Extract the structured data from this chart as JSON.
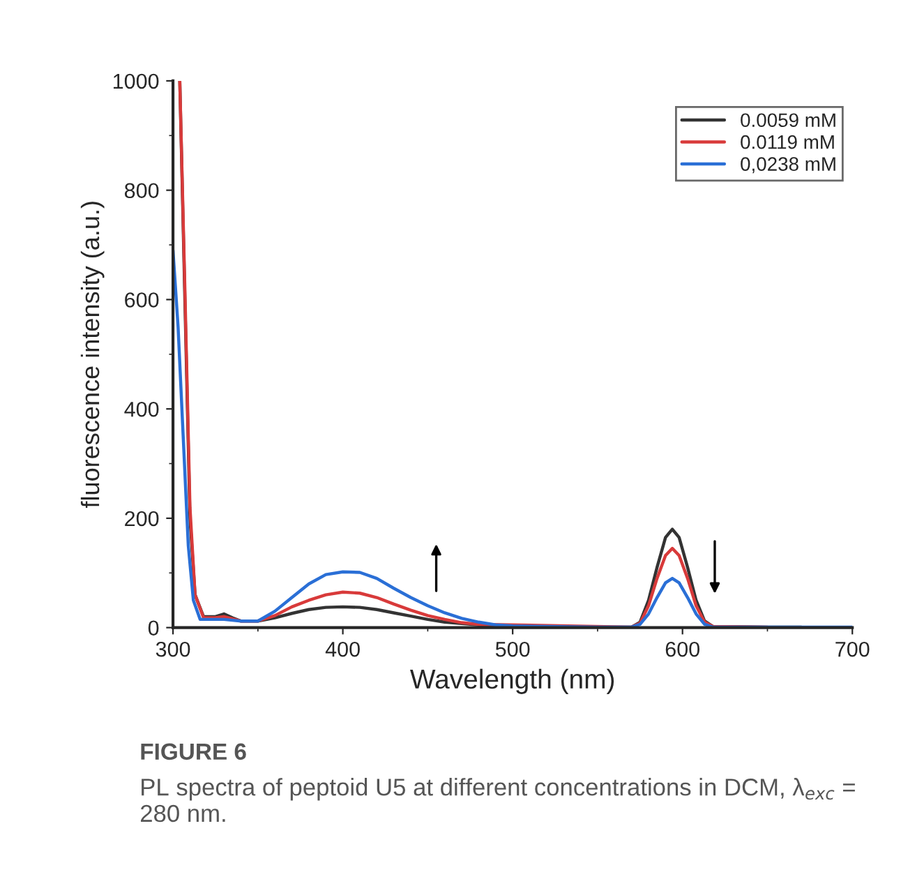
{
  "chart_data": {
    "type": "line",
    "xlabel": "Wavelength (nm)",
    "ylabel": "fluorescence intensity (a.u.)",
    "xlim": [
      300,
      700
    ],
    "xticks": [
      300,
      400,
      500,
      600,
      700
    ],
    "ylim": [
      0,
      1000
    ],
    "yticks": [
      0,
      200,
      400,
      600,
      800,
      1000
    ],
    "grid": false,
    "legend": "top right",
    "line_style": "solid",
    "marker": "none",
    "annotations": [
      "FIGURE 6",
      "PL spectra of peptoid U5 at different concentrations in DCM, λ$_{exc}$ = 280 nm."
    ],
    "series": [
      {
        "name": "0.0059 mM",
        "color": "#333333",
        "x": [
          304,
          307,
          310,
          313,
          318,
          325,
          330,
          335,
          340,
          350,
          360,
          370,
          380,
          390,
          400,
          410,
          420,
          430,
          440,
          450,
          460,
          480,
          500,
          550,
          570,
          575,
          580,
          585,
          590,
          594,
          598,
          603,
          608,
          613,
          618,
          650,
          670
        ],
        "values": [
          1000,
          600,
          200,
          60,
          20,
          20,
          25,
          18,
          12,
          12,
          18,
          26,
          33,
          37,
          38,
          37,
          33,
          27,
          21,
          15,
          10,
          5,
          3,
          1,
          1,
          10,
          50,
          110,
          165,
          180,
          165,
          110,
          50,
          12,
          2,
          1,
          1
        ]
      },
      {
        "name": "0.0119 mM",
        "color": "#d83a3a",
        "x": [
          304,
          307,
          310,
          313,
          318,
          325,
          330,
          340,
          350,
          360,
          370,
          380,
          390,
          400,
          410,
          420,
          430,
          440,
          450,
          460,
          470,
          480,
          500,
          550,
          570,
          575,
          580,
          585,
          590,
          594,
          598,
          603,
          608,
          613,
          618,
          650
        ],
        "values": [
          1000,
          620,
          220,
          60,
          18,
          18,
          20,
          12,
          12,
          22,
          38,
          50,
          60,
          65,
          63,
          55,
          43,
          32,
          22,
          15,
          9,
          6,
          null,
          null,
          1,
          8,
          40,
          90,
          132,
          145,
          132,
          90,
          40,
          10,
          2,
          1
        ]
      },
      {
        "name": "0,0238 mM",
        "color": "#2a6fd6",
        "x": [
          300,
          303,
          306,
          309,
          312,
          316,
          320,
          330,
          340,
          350,
          360,
          370,
          380,
          390,
          400,
          410,
          420,
          430,
          440,
          450,
          460,
          470,
          480,
          490,
          500,
          550,
          570,
          575,
          580,
          585,
          590,
          594,
          598,
          603,
          608,
          613,
          618,
          650,
          700
        ],
        "values": [
          690,
          550,
          350,
          150,
          50,
          15,
          15,
          15,
          12,
          12,
          30,
          55,
          80,
          97,
          102,
          101,
          90,
          72,
          55,
          40,
          27,
          17,
          10,
          5,
          3,
          1,
          1,
          6,
          25,
          55,
          82,
          90,
          82,
          55,
          25,
          6,
          1,
          1,
          1
        ]
      }
    ]
  }
}
